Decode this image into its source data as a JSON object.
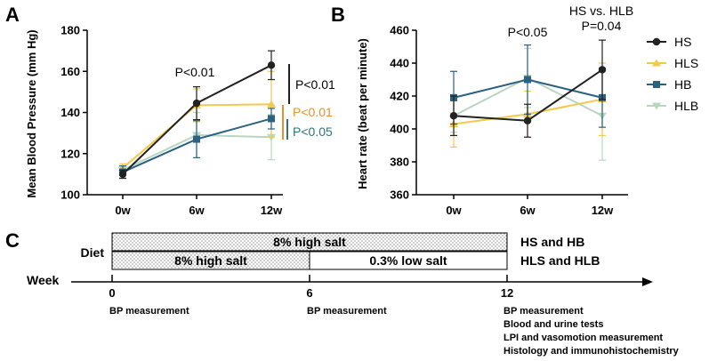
{
  "colors": {
    "HS": "#222222",
    "HLS": "#f2c94c",
    "HB": "#2b6183",
    "HLB": "#b9d6c1",
    "sig_orange": "#e8912d",
    "sig_teal": "#2e7478"
  },
  "panel_a": {
    "letter": "A",
    "annotations": {
      "p_6w": "P<0.01",
      "p_hs": "P<0.01",
      "p_hls": "P<0.01",
      "p_hb": "P<0.05"
    }
  },
  "panel_b": {
    "letter": "B",
    "annotations": {
      "p_6w": "P<0.05",
      "comp_title": "HS vs. HLB",
      "comp_p": "P=0.04"
    }
  },
  "legend": [
    "HS",
    "HLS",
    "HB",
    "HLB"
  ],
  "panel_c": {
    "letter": "C",
    "diet_label": "Diet",
    "week_label": "Week",
    "bar_full": "8% high salt",
    "bar_half_high": "8% high salt",
    "bar_half_low": "0.3% low salt",
    "group_top": "HS and HB",
    "group_bottom": "HLS and HLB",
    "ticks": [
      "0",
      "6",
      "12"
    ],
    "bp_0": "BP measurement",
    "bp_6": "BP measurement",
    "end_items": [
      "BP measurement",
      "Blood and urine tests",
      "LPI and vasomotion measurement",
      "Histology and immunohistochemistry"
    ]
  },
  "chart_data": [
    {
      "type": "line",
      "title": "",
      "xlabel": "",
      "ylabel": "Mean Blood Pressure (mm Hg)",
      "categories": [
        "0w",
        "6w",
        "12w"
      ],
      "ylim": [
        100,
        180
      ],
      "yticks": [
        100,
        120,
        140,
        160,
        180
      ],
      "series": [
        {
          "name": "HS",
          "values": [
            110,
            144.5,
            163
          ],
          "err": [
            2,
            8,
            7
          ]
        },
        {
          "name": "HLS",
          "values": [
            113,
            143.5,
            144
          ],
          "err": [
            2,
            8,
            16
          ]
        },
        {
          "name": "HB",
          "values": [
            111,
            127,
            137
          ],
          "err": [
            3,
            9,
            5
          ]
        },
        {
          "name": "HLB",
          "values": [
            112,
            129,
            128
          ],
          "err": [
            2,
            11,
            11
          ]
        }
      ]
    },
    {
      "type": "line",
      "title": "",
      "xlabel": "",
      "ylabel": "Heart rate (beat per minute)",
      "categories": [
        "0w",
        "6w",
        "12w"
      ],
      "ylim": [
        360,
        460
      ],
      "yticks": [
        360,
        380,
        400,
        420,
        440,
        460
      ],
      "series": [
        {
          "name": "HS",
          "values": [
            408,
            405,
            436
          ],
          "err": [
            12,
            10,
            18
          ]
        },
        {
          "name": "HLS",
          "values": [
            403,
            409,
            418
          ],
          "err": [
            14,
            14,
            22
          ]
        },
        {
          "name": "HB",
          "values": [
            419,
            430,
            419
          ],
          "err": [
            16,
            21,
            18
          ]
        },
        {
          "name": "HLB",
          "values": [
            408,
            431,
            408
          ],
          "err": [
            10,
            18,
            27
          ]
        }
      ]
    }
  ]
}
